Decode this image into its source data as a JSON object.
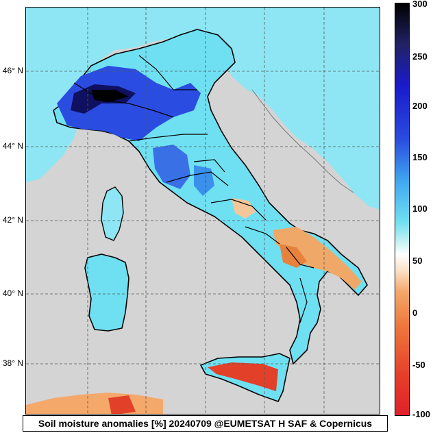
{
  "caption": "Soil moisture anomalies [%] 20240709 @EUMETSAT H SAF & Copernicus",
  "latitude_labels": [
    "46° N",
    "44° N",
    "42° N",
    "40° N",
    "38° N"
  ],
  "colorbar": {
    "ticks": [
      "300",
      "250",
      "200",
      "150",
      "100",
      "50",
      "0",
      "-50",
      "-100"
    ],
    "unit": "%"
  },
  "colors": {
    "background": "#d0d0d0",
    "positive_max": "#000000",
    "positive_high": "#1a1acc",
    "positive_mid": "#3fa6f0",
    "positive_low": "#6fe0f2",
    "neutral": "#ffffff",
    "negative_low": "#f4a86a",
    "negative_high": "#e0202a"
  }
}
